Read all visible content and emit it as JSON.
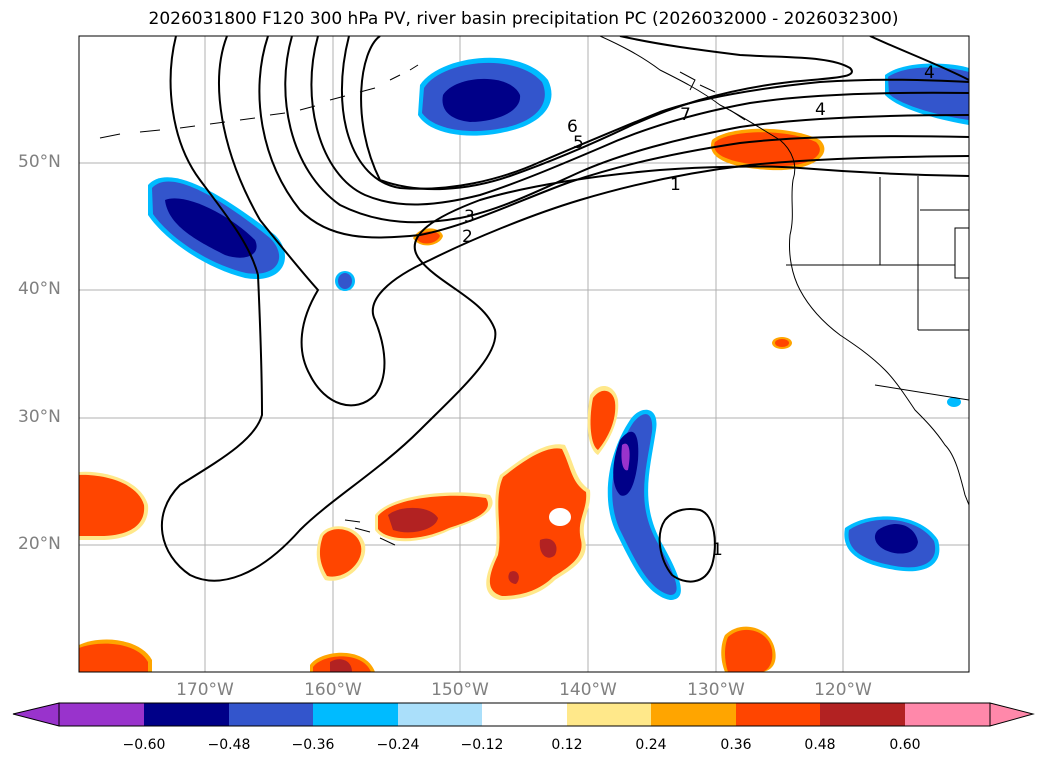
{
  "title": "2026031800 F120 300 hPa PV, river basin precipitation PC (2026032000 - 2026032300)",
  "lat_labels": [
    "50°N",
    "40°N",
    "30°N",
    "20°N"
  ],
  "lon_labels": [
    "170°W",
    "160°W",
    "150°W",
    "140°W",
    "130°W",
    "120°W"
  ],
  "contour_labels": [
    "1",
    "2",
    "3",
    "4",
    "5",
    "6",
    "7",
    "4",
    "1"
  ],
  "colorbar": {
    "ticks": [
      "−0.60",
      "−0.48",
      "−0.36",
      "−0.24",
      "−0.12",
      "0.12",
      "0.24",
      "0.36",
      "0.48",
      "0.60"
    ],
    "colors": [
      "#9933cc",
      "#000088",
      "#3355cc",
      "#00bbff",
      "#aadffa",
      "#ffffff",
      "#ffe88a",
      "#ffa500",
      "#ff4500",
      "#b22222",
      "#ff88aa"
    ]
  },
  "colors": {
    "neg_strong": "#000088",
    "neg_mid": "#3355cc",
    "neg_light": "#00bbff",
    "pos_light": "#ffe88a",
    "pos_mid": "#ffa500",
    "pos_strong": "#ff4500",
    "pos_dark": "#b22222",
    "grid": "#b0b0b0",
    "axis_label": "#808080"
  }
}
